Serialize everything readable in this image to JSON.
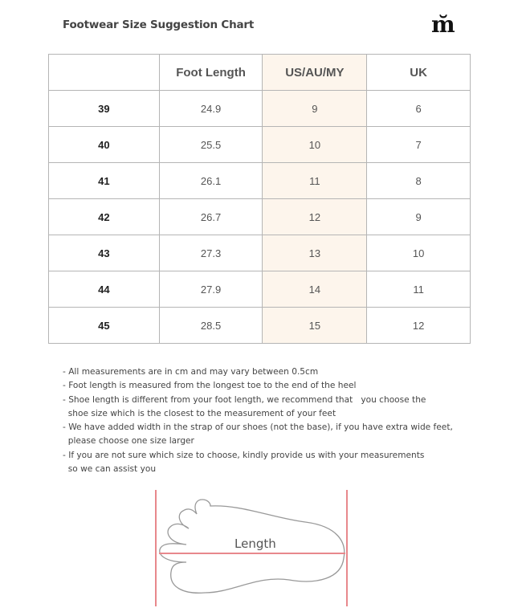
{
  "title": "Footwear Size Suggestion Chart",
  "logo": "m̆",
  "table": {
    "headers": [
      "",
      "Foot Length",
      "US/AU/MY",
      "UK"
    ],
    "rows": [
      [
        "39",
        "24.9",
        "9",
        "6"
      ],
      [
        "40",
        "25.5",
        "10",
        "7"
      ],
      [
        "41",
        "26.1",
        "11",
        "8"
      ],
      [
        "42",
        "26.7",
        "12",
        "9"
      ],
      [
        "43",
        "27.3",
        "13",
        "10"
      ],
      [
        "44",
        "27.9",
        "14",
        "11"
      ],
      [
        "45",
        "28.5",
        "15",
        "12"
      ]
    ],
    "highlight_color": "#fdf5ec"
  },
  "notes": [
    "- All measurements are in cm and may vary between 0.5cm",
    "- Foot length is measured from the longest toe to the end of the heel",
    "- Shoe length is different from your foot length, we recommend that   you choose the",
    "  shoe size which is the closest to the measurement of your feet",
    "- We have added width in the strap of our shoes (not the base), if you have extra wide feet,",
    "  please choose one size larger",
    "- If you are not sure which size to choose, kindly provide us with your measurements",
    "  so we can assist you"
  ],
  "diagram": {
    "label": "Length",
    "line_color": "#e8888c"
  }
}
